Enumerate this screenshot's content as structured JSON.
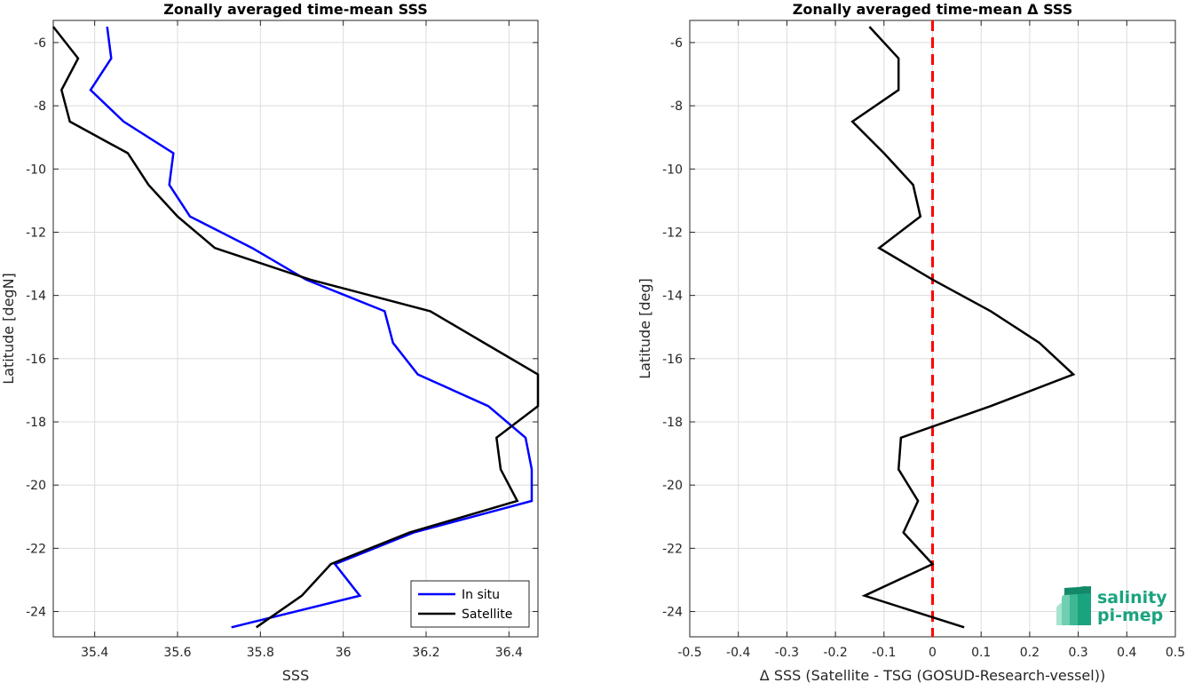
{
  "chart_data": [
    {
      "type": "line",
      "title": "Zonally averaged time-mean SSS",
      "xlabel": "SSS",
      "ylabel": "Latitude [degN]",
      "xlim": [
        35.3,
        36.47
      ],
      "ylim": [
        -24.8,
        -5.3
      ],
      "xticks": [
        35.4,
        35.6,
        35.8,
        36.0,
        36.2,
        36.4
      ],
      "xtick_labels": [
        "35.4",
        "35.6",
        "35.8",
        "36",
        "36.2",
        "36.4"
      ],
      "yticks": [
        -6,
        -8,
        -10,
        -12,
        -14,
        -16,
        -18,
        -20,
        -22,
        -24
      ],
      "ytick_labels": [
        "-6",
        "-8",
        "-10",
        "-12",
        "-14",
        "-16",
        "-18",
        "-20",
        "-22",
        "-24"
      ],
      "grid": true,
      "legend_position": "bottom-right",
      "series": [
        {
          "name": "In situ",
          "color": "#0000ff",
          "points": [
            [
              35.43,
              -5.5
            ],
            [
              35.44,
              -6.5
            ],
            [
              35.39,
              -7.5
            ],
            [
              35.47,
              -8.5
            ],
            [
              35.59,
              -9.5
            ],
            [
              35.58,
              -10.5
            ],
            [
              35.63,
              -11.5
            ],
            [
              35.78,
              -12.5
            ],
            [
              35.91,
              -13.5
            ],
            [
              36.1,
              -14.5
            ],
            [
              36.12,
              -15.5
            ],
            [
              36.18,
              -16.5
            ],
            [
              36.35,
              -17.5
            ],
            [
              36.44,
              -18.5
            ],
            [
              36.455,
              -19.5
            ],
            [
              36.455,
              -20.5
            ],
            [
              36.17,
              -21.5
            ],
            [
              35.98,
              -22.5
            ],
            [
              36.04,
              -23.5
            ],
            [
              35.73,
              -24.5
            ]
          ]
        },
        {
          "name": "Satellite",
          "color": "#000000",
          "points": [
            [
              35.3,
              -5.5
            ],
            [
              35.36,
              -6.5
            ],
            [
              35.32,
              -7.5
            ],
            [
              35.34,
              -8.5
            ],
            [
              35.48,
              -9.5
            ],
            [
              35.53,
              -10.5
            ],
            [
              35.6,
              -11.5
            ],
            [
              35.69,
              -12.5
            ],
            [
              35.92,
              -13.5
            ],
            [
              36.21,
              -14.5
            ],
            [
              36.34,
              -15.5
            ],
            [
              36.47,
              -16.5
            ],
            [
              36.47,
              -17.5
            ],
            [
              36.37,
              -18.5
            ],
            [
              36.38,
              -19.5
            ],
            [
              36.42,
              -20.5
            ],
            [
              36.16,
              -21.5
            ],
            [
              35.97,
              -22.5
            ],
            [
              35.9,
              -23.5
            ],
            [
              35.79,
              -24.5
            ]
          ]
        }
      ]
    },
    {
      "type": "line",
      "title": "Zonally averaged time-mean Δ SSS",
      "xlabel": "Δ SSS (Satellite - TSG (GOSUD-Research-vessel))",
      "ylabel": "Latitude [deg]",
      "xlim": [
        -0.5,
        0.5
      ],
      "ylim": [
        -24.8,
        -5.3
      ],
      "xticks": [
        -0.5,
        -0.4,
        -0.3,
        -0.2,
        -0.1,
        0,
        0.1,
        0.2,
        0.3,
        0.4,
        0.5
      ],
      "xtick_labels": [
        "-0.5",
        "-0.4",
        "-0.3",
        "-0.2",
        "-0.1",
        "0",
        "0.1",
        "0.2",
        "0.3",
        "0.4",
        "0.5"
      ],
      "yticks": [
        -6,
        -8,
        -10,
        -12,
        -14,
        -16,
        -18,
        -20,
        -22,
        -24
      ],
      "ytick_labels": [
        "-6",
        "-8",
        "-10",
        "-12",
        "-14",
        "-16",
        "-18",
        "-20",
        "-22",
        "-24"
      ],
      "grid": true,
      "reference_line": {
        "x": 0,
        "color": "#ff0000",
        "style": "dashed"
      },
      "series": [
        {
          "color": "#000000",
          "points": [
            [
              -0.13,
              -5.5
            ],
            [
              -0.07,
              -6.5
            ],
            [
              -0.07,
              -7.5
            ],
            [
              -0.165,
              -8.5
            ],
            [
              -0.1,
              -9.5
            ],
            [
              -0.04,
              -10.5
            ],
            [
              -0.025,
              -11.5
            ],
            [
              -0.11,
              -12.5
            ],
            [
              0.0,
              -13.5
            ],
            [
              0.12,
              -14.5
            ],
            [
              0.22,
              -15.5
            ],
            [
              0.29,
              -16.5
            ],
            [
              0.12,
              -17.5
            ],
            [
              -0.065,
              -18.5
            ],
            [
              -0.07,
              -19.5
            ],
            [
              -0.03,
              -20.5
            ],
            [
              -0.06,
              -21.5
            ],
            [
              0.0,
              -22.5
            ],
            [
              -0.14,
              -23.5
            ],
            [
              0.065,
              -24.5
            ]
          ]
        }
      ]
    }
  ],
  "logo": {
    "line1": "salinity",
    "line2": "pi-mep",
    "color": "#1aa37f"
  }
}
